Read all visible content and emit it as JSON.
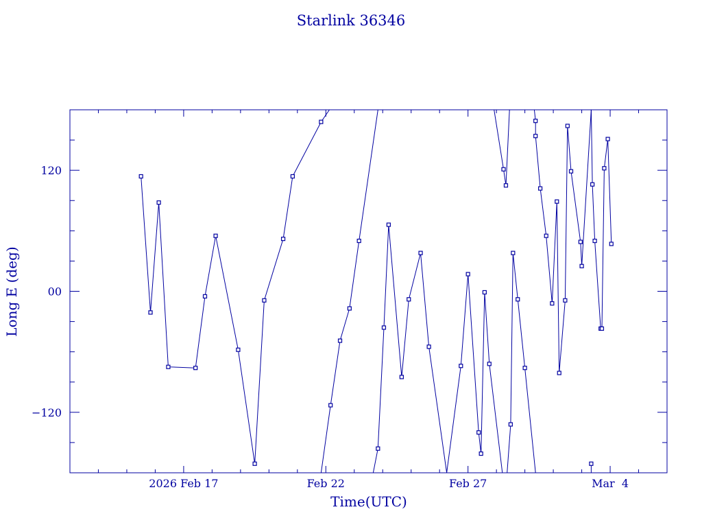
{
  "chart_data": {
    "type": "line",
    "title": "Starlink 36346",
    "xlabel": "Time(UTC)",
    "ylabel": "Long E (deg)",
    "x_domain": [
      "2026-02-13",
      "2026-03-06"
    ],
    "ylim": [
      -180,
      180
    ],
    "grid": false,
    "legend": "none",
    "x_ticks": [
      {
        "date": "2026-02-17",
        "label": "2026 Feb 17"
      },
      {
        "date": "2026-02-22",
        "label": "Feb 22"
      },
      {
        "date": "2026-02-27",
        "label": "Feb 27"
      },
      {
        "date": "2026-03-04",
        "label": "Mar  4"
      }
    ],
    "y_ticks": [
      {
        "value": 120,
        "label": "120"
      },
      {
        "value": 0,
        "label": "00"
      },
      {
        "value": -120,
        "label": "−120"
      }
    ],
    "colors": {
      "line": "#0000a0",
      "marker": "#0000a0",
      "text": "#0000a0"
    },
    "series": [
      {
        "values": [
          {
            "x": "2026-02-15T12:00",
            "y": 114
          },
          {
            "x": "2026-02-15T20:00",
            "y": -21
          },
          {
            "x": "2026-02-16T03:00",
            "y": 88
          },
          {
            "x": "2026-02-16T11:00",
            "y": -75
          },
          {
            "x": "2026-02-17T10:00",
            "y": -76
          },
          {
            "x": "2026-02-17T18:00",
            "y": -5
          },
          {
            "x": "2026-02-18T03:00",
            "y": 55
          },
          {
            "x": "2026-02-18T22:00",
            "y": -58
          },
          {
            "x": "2026-02-19T12:00",
            "y": -171
          },
          {
            "x": "2026-02-19T20:00",
            "y": -9
          },
          {
            "x": "2026-02-20T12:00",
            "y": 52
          },
          {
            "x": "2026-02-20T20:00",
            "y": 114
          },
          {
            "x": "2026-02-21T20:00",
            "y": 168
          },
          {
            "x": "2026-02-22T03:00",
            "y": 180
          }
        ]
      },
      {
        "values": [
          {
            "x": "2026-02-21T20:00",
            "y": -180
          },
          {
            "x": "2026-02-22T04:00",
            "y": -113
          },
          {
            "x": "2026-02-22T12:00",
            "y": -49
          },
          {
            "x": "2026-02-22T20:00",
            "y": -17
          },
          {
            "x": "2026-02-23T04:00",
            "y": 50
          },
          {
            "x": "2026-02-23T20:00",
            "y": 180
          }
        ]
      },
      {
        "values": [
          {
            "x": "2026-02-23T16:00",
            "y": -180
          },
          {
            "x": "2026-02-23T20:00",
            "y": -156
          },
          {
            "x": "2026-02-24T01:00",
            "y": -36
          },
          {
            "x": "2026-02-24T05:00",
            "y": 66
          },
          {
            "x": "2026-02-24T16:00",
            "y": -85
          },
          {
            "x": "2026-02-24T22:00",
            "y": -8
          },
          {
            "x": "2026-02-25T08:00",
            "y": 38
          },
          {
            "x": "2026-02-25T15:00",
            "y": -55
          },
          {
            "x": "2026-02-26T06:00",
            "y": -180
          }
        ]
      },
      {
        "values": [
          {
            "x": "2026-02-26T06:00",
            "y": -180
          },
          {
            "x": "2026-02-26T18:00",
            "y": -74
          },
          {
            "x": "2026-02-27T00:00",
            "y": 17
          },
          {
            "x": "2026-02-27T09:00",
            "y": -140
          },
          {
            "x": "2026-02-27T11:00",
            "y": -161
          },
          {
            "x": "2026-02-27T14:00",
            "y": -1
          },
          {
            "x": "2026-02-27T18:00",
            "y": -72
          },
          {
            "x": "2026-02-28T05:00",
            "y": -180
          }
        ]
      },
      {
        "values": [
          {
            "x": "2026-02-27T22:00",
            "y": 180
          },
          {
            "x": "2026-02-28T06:00",
            "y": 121
          },
          {
            "x": "2026-02-28T08:00",
            "y": 105
          },
          {
            "x": "2026-02-28T11:00",
            "y": 180
          }
        ]
      },
      {
        "values": [
          {
            "x": "2026-02-28T09:00",
            "y": -180
          },
          {
            "x": "2026-02-28T12:00",
            "y": -132
          },
          {
            "x": "2026-02-28T14:00",
            "y": 38
          },
          {
            "x": "2026-02-28T18:00",
            "y": -8
          },
          {
            "x": "2026-03-01T00:00",
            "y": -76
          },
          {
            "x": "2026-03-01T09:00",
            "y": -180
          }
        ]
      },
      {
        "values": [
          {
            "x": "2026-03-01T08:00",
            "y": 180
          },
          {
            "x": "2026-03-01T09:00",
            "y": 169
          },
          {
            "x": "2026-03-01T09:00",
            "y": 154
          },
          {
            "x": "2026-03-01T13:00",
            "y": 102
          },
          {
            "x": "2026-03-01T18:00",
            "y": 55
          },
          {
            "x": "2026-03-01T23:00",
            "y": -12
          },
          {
            "x": "2026-03-02T03:00",
            "y": 89
          },
          {
            "x": "2026-03-02T05:00",
            "y": -81
          },
          {
            "x": "2026-03-02T10:00",
            "y": -9
          },
          {
            "x": "2026-03-02T12:00",
            "y": 164
          },
          {
            "x": "2026-03-02T15:00",
            "y": 119
          },
          {
            "x": "2026-03-02T23:00",
            "y": 49
          },
          {
            "x": "2026-03-03T00:00",
            "y": 25
          },
          {
            "x": "2026-03-03T08:00",
            "y": 180
          }
        ]
      },
      {
        "values": [
          {
            "x": "2026-03-03T08:00",
            "y": -180
          },
          {
            "x": "2026-03-03T08:00",
            "y": -171
          }
        ]
      },
      {
        "values": [
          {
            "x": "2026-03-03T08:00",
            "y": 180
          },
          {
            "x": "2026-03-03T09:00",
            "y": 106
          },
          {
            "x": "2026-03-03T11:00",
            "y": 50
          },
          {
            "x": "2026-03-03T16:00",
            "y": -37
          },
          {
            "x": "2026-03-03T17:00",
            "y": -37
          },
          {
            "x": "2026-03-03T19:00",
            "y": 122
          },
          {
            "x": "2026-03-03T22:00",
            "y": 151
          },
          {
            "x": "2026-03-04T01:00",
            "y": 47
          }
        ]
      }
    ]
  }
}
